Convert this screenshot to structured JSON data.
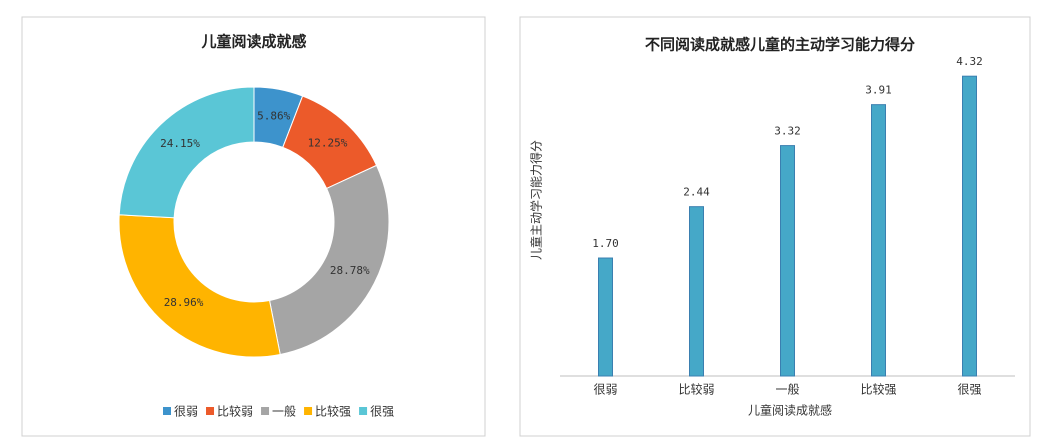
{
  "chart_data": [
    {
      "type": "pie",
      "title": "儿童阅读成就感",
      "donut": true,
      "legend": "bottom",
      "categories": [
        "很弱",
        "比较弱",
        "一般",
        "比较强",
        "很强"
      ],
      "values": [
        5.86,
        12.25,
        28.78,
        28.96,
        24.15
      ],
      "value_labels": [
        "5.86%",
        "12.25%",
        "28.78%",
        "28.96%",
        "24.15%"
      ],
      "colors": [
        "#3d93cc",
        "#ec5a2a",
        "#a5a5a5",
        "#ffb400",
        "#5ac6d6"
      ]
    },
    {
      "type": "bar",
      "title": "不同阅读成就感儿童的主动学习能力得分",
      "xlabel": "儿童阅读成就感",
      "ylabel": "儿童主动学习能力得分",
      "categories": [
        "很弱",
        "比较弱",
        "一般",
        "比较强",
        "很强"
      ],
      "values": [
        1.7,
        2.44,
        3.32,
        3.91,
        4.32
      ],
      "value_labels": [
        "1.70",
        "2.44",
        "3.32",
        "3.91",
        "4.32"
      ],
      "color": "#45a8c8",
      "ylim": [
        0,
        5
      ]
    }
  ]
}
